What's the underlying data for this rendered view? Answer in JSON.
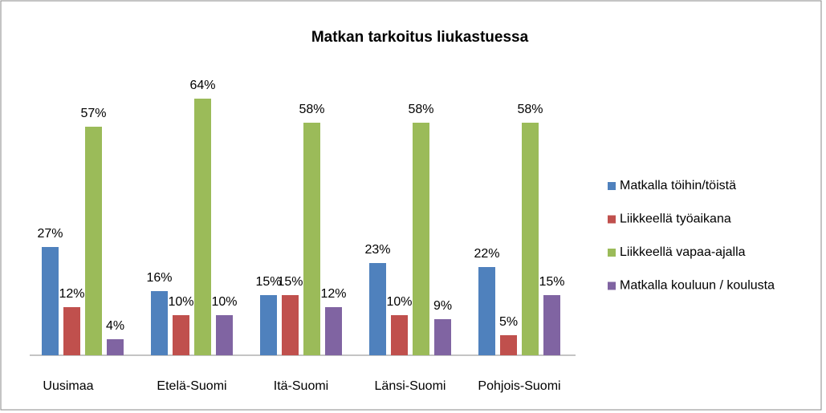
{
  "chart_data": {
    "type": "bar",
    "title": "Matkan tarkoitus liukastuessa",
    "categories": [
      "Uusimaa",
      "Etelä-Suomi",
      "Itä-Suomi",
      "Länsi-Suomi",
      "Pohjois-Suomi"
    ],
    "series": [
      {
        "name": "Matkalla töihin/töistä",
        "color": "#4f81bd",
        "values": [
          27,
          16,
          15,
          23,
          22
        ],
        "value_labels": [
          "27%",
          "16%",
          "15%",
          "23%",
          "22%"
        ]
      },
      {
        "name": "Liikkeellä työaikana",
        "color": "#c0504d",
        "values": [
          12,
          10,
          15,
          10,
          5
        ],
        "value_labels": [
          "12%",
          "10%",
          "15%",
          "10%",
          "5%"
        ]
      },
      {
        "name": "Liikkeellä vapaa-ajalla",
        "color": "#9bbb59",
        "values": [
          57,
          64,
          58,
          58,
          58
        ],
        "value_labels": [
          "57%",
          "64%",
          "58%",
          "58%",
          "58%"
        ]
      },
      {
        "name": "Matkalla kouluun / koulusta",
        "color": "#8064a2",
        "values": [
          4,
          10,
          12,
          9,
          15
        ],
        "value_labels": [
          "4%",
          "10%",
          "12%",
          "9%",
          "15%"
        ]
      }
    ],
    "legend": "right"
  }
}
